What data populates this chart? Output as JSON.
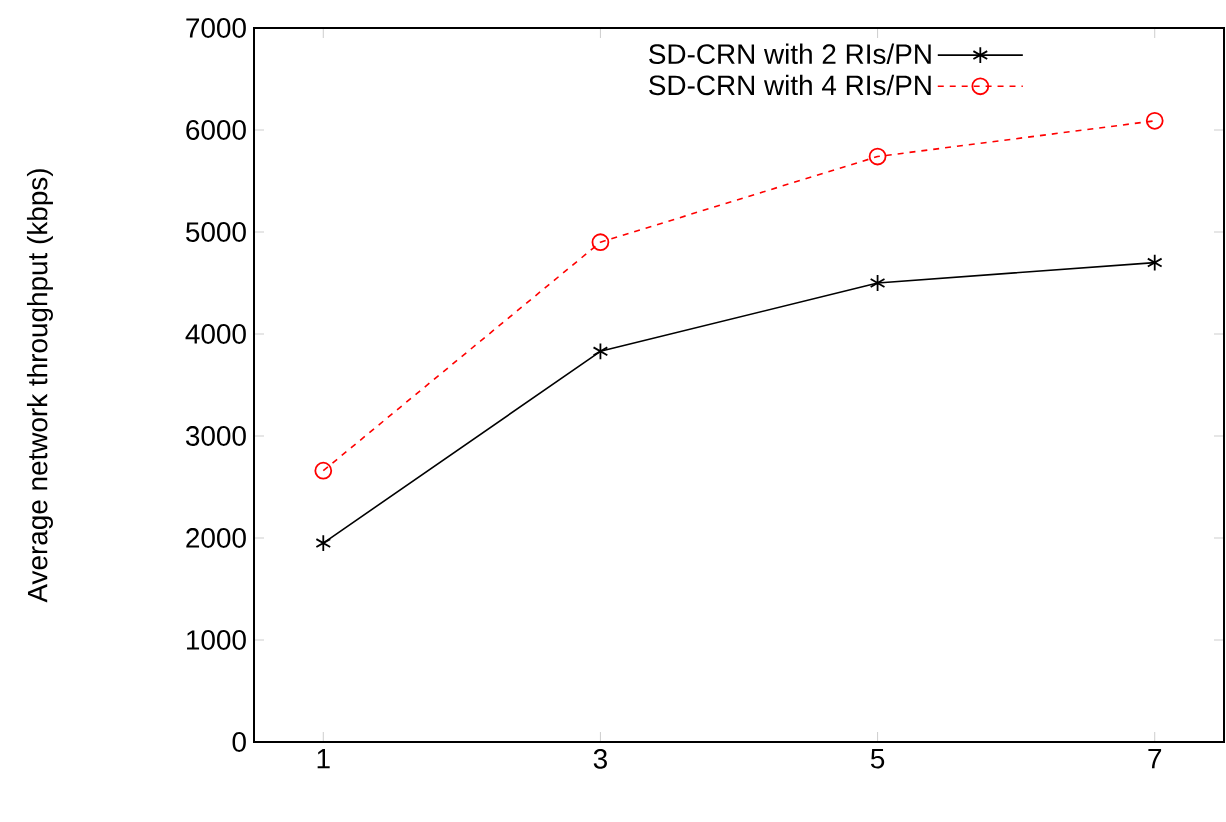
{
  "chart_data": {
    "type": "line",
    "ylabel": "Average network throughput (kbps)",
    "x": [
      1,
      3,
      5,
      7
    ],
    "series": [
      {
        "name": "SD-CRN with 2 RIs/PN",
        "color": "#000000",
        "marker": "cross",
        "line_style": "solid",
        "values": [
          1950,
          3830,
          4500,
          4700
        ]
      },
      {
        "name": "SD-CRN with 4 RIs/PN",
        "color": "#ff0000",
        "marker": "circle",
        "line_style": "dashed",
        "values": [
          2660,
          4900,
          5740,
          6090
        ]
      }
    ],
    "xlim": [
      0.5,
      7.5
    ],
    "xticks": [
      1,
      3,
      5,
      7
    ],
    "ylim": [
      0,
      7000
    ],
    "yticks": [
      0,
      1000,
      2000,
      3000,
      4000,
      5000,
      6000,
      7000
    ],
    "grid": false,
    "legend": "top right"
  }
}
